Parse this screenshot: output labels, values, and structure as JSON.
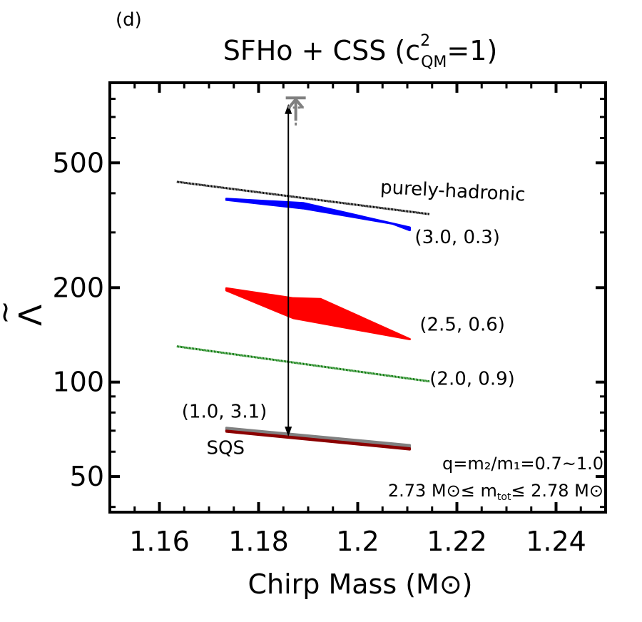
{
  "panel_label": "(d)",
  "chart_data": {
    "type": "line",
    "title": "SFHo + CSS (c²QM=1)",
    "title_parts": {
      "main": "SFHo + CSS (c",
      "sup": "2",
      "sub": "QM",
      "end": "=1)"
    },
    "xlabel": "Chirp Mass (M⊙)",
    "ylabel": "Λ̃",
    "ylabel_parts": {
      "base": "Λ",
      "accent": "~"
    },
    "xlim": [
      1.15,
      1.25
    ],
    "ylim": [
      38.5,
      900
    ],
    "yscale": "log",
    "xticks": [
      1.16,
      1.18,
      1.2,
      1.22,
      1.24
    ],
    "xtick_labels": [
      "1.16",
      "1.18",
      "1.2",
      "1.22",
      "1.24"
    ],
    "yticks": [
      50,
      100,
      200,
      500
    ],
    "ytick_labels": [
      "50",
      "100",
      "200",
      "500"
    ],
    "grid": false,
    "series": [
      {
        "name": "purely-hadronic",
        "kind": "line",
        "color": "#000000",
        "x": [
          1.1635,
          1.2145
        ],
        "y": [
          435,
          343
        ]
      },
      {
        "name": "(3.0, 0.3)",
        "kind": "band",
        "color": "#0000ff",
        "upper": {
          "x": [
            1.1735,
            1.189,
            1.2105
          ],
          "y": [
            384,
            372,
            311
          ]
        },
        "lower": {
          "x": [
            1.1735,
            1.189,
            1.207,
            1.2105
          ],
          "y": [
            381,
            358,
            320,
            305
          ]
        }
      },
      {
        "name": "(2.5, 0.6)",
        "kind": "band",
        "color": "#ff0000",
        "upper": {
          "x": [
            1.1735,
            1.187,
            1.1925,
            1.2105
          ],
          "y": [
            199,
            185,
            184,
            137
          ]
        },
        "lower": {
          "x": [
            1.1735,
            1.187,
            1.2105
          ],
          "y": [
            196,
            160,
            137
          ]
        }
      },
      {
        "name": "(2.0, 0.9)",
        "kind": "line",
        "color": "#007700",
        "x": [
          1.1635,
          1.2145
        ],
        "y": [
          130,
          100.5
        ]
      },
      {
        "name": "(1.0, 3.1)",
        "kind": "band",
        "color": "#808080",
        "upper": {
          "x": [
            1.1735,
            1.2105
          ],
          "y": [
            71.5,
            63
          ]
        },
        "lower": {
          "x": [
            1.1735,
            1.2105
          ],
          "y": [
            70,
            61.5
          ]
        }
      },
      {
        "name": "SQS",
        "kind": "band",
        "color": "#8b0000",
        "upper": {
          "x": [
            1.1735,
            1.2105
          ],
          "y": [
            70,
            61.5
          ]
        },
        "lower": {
          "x": [
            1.1735,
            1.2105
          ],
          "y": [
            69.5,
            61
          ]
        }
      }
    ],
    "annotations": {
      "series_labels": [
        {
          "text": "purely-hadronic",
          "x": 1.2045,
          "y": 400,
          "rotate": 3
        },
        {
          "text": "(3.0, 0.3)",
          "x": 1.2115,
          "y": 277
        },
        {
          "text": "(2.5, 0.6)",
          "x": 1.2125,
          "y": 146
        },
        {
          "text": "(2.0, 0.9)",
          "x": 1.2145,
          "y": 98
        },
        {
          "text": "(1.0, 3.1)",
          "x": 1.1645,
          "y": 77
        },
        {
          "text": "SQS",
          "x": 1.1695,
          "y": 59
        }
      ],
      "conditions": {
        "line1": "q=m₂/m₁=0.7~1.0",
        "line2": "2.73 M⊙≤ mtot≤ 2.78 M⊙",
        "line2_parts": {
          "a": "2.73 M⊙≤ m",
          "sub": "tot",
          "b": "≤ 2.78 M⊙"
        }
      },
      "range_arrow": {
        "x": 1.186,
        "y_from": 67,
        "y_to": 770,
        "color": "#000000"
      },
      "upper_limit": {
        "x": 1.1875,
        "y_solid": 805,
        "y_dashed": 750,
        "color": "#808080"
      }
    }
  }
}
